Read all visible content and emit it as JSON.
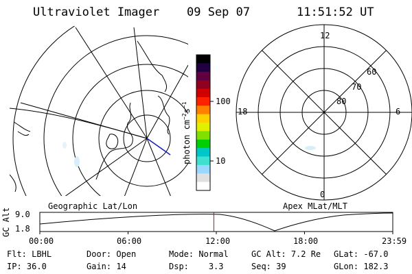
{
  "header": {
    "instrument": "Ultraviolet Imager",
    "date": "09 Sep 07",
    "time": "11:51:52 UT"
  },
  "colorbar": {
    "unit_label": "photon cm",
    "unit_exp1": "−2",
    "unit_s": "s",
    "unit_exp2": "−1",
    "ticks": [
      "100",
      "10"
    ],
    "colors": [
      "#ffffff",
      "#e0e0e0",
      "#9bd8ff",
      "#40e0d0",
      "#00c8c8",
      "#00d000",
      "#80e000",
      "#e0f000",
      "#ffd000",
      "#ff8000",
      "#ff2000",
      "#d00000",
      "#900020",
      "#600040",
      "#200040",
      "#000000"
    ]
  },
  "left_map": {
    "caption": "Geographic Lat/Lon"
  },
  "right_map": {
    "caption": "Apex MLat/MLT",
    "mlt_labels": {
      "top": "12",
      "left": "18",
      "right": "6",
      "bottom": "0"
    },
    "lat_labels": [
      "60",
      "70",
      "80"
    ]
  },
  "altitude_plot": {
    "ylabel": "GC Alt",
    "y_ticks": [
      "9.0",
      "1.8"
    ],
    "x_ticks": [
      "00:00",
      "06:00",
      "12:00",
      "18:00",
      "23:59"
    ],
    "current_time_fraction": 0.493,
    "marker_color": "#e00000"
  },
  "info": {
    "filter_label": "Flt:",
    "filter_value": "LBHL",
    "ip_label": "IP:",
    "ip_value": "36.0",
    "door_label": "Door:",
    "door_value": "Open",
    "gain_label": "Gain:",
    "gain_value": "14",
    "mode_label": "Mode:",
    "mode_value": "Normal",
    "dsp_label": "Dsp:",
    "dsp_value": "3.3",
    "gcalt_label": "GC Alt:",
    "gcalt_value": "7.2 Re",
    "seq_label": "Seq:",
    "seq_value": "39",
    "glat_label": "GLat:",
    "glat_value": "-67.0",
    "glon_label": "GLon:",
    "glon_value": "182.3"
  }
}
